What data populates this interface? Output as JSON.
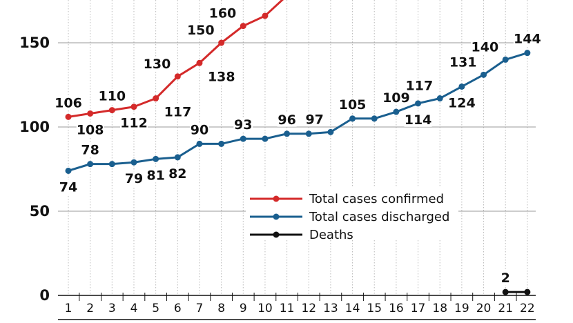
{
  "chart_data": {
    "type": "line",
    "x": [
      1,
      2,
      3,
      4,
      5,
      6,
      7,
      8,
      9,
      10,
      11,
      12,
      13,
      14,
      15,
      16,
      17,
      18,
      19,
      20,
      21,
      22
    ],
    "xtick_labels": [
      "1",
      "2",
      "3",
      "4",
      "5",
      "6",
      "7",
      "8",
      "9",
      "10",
      "11",
      "12",
      "13",
      "14",
      "15",
      "16",
      "17",
      "18",
      "19",
      "20",
      "21",
      "22"
    ],
    "ylim": [
      0,
      175
    ],
    "yticks": [
      0,
      50,
      100,
      150
    ],
    "ytick_labels": [
      "0",
      "50",
      "100",
      "150"
    ],
    "grid": true,
    "legend_position": "center-right",
    "series": [
      {
        "name": "Total cases confirmed",
        "color": "#d42a2a",
        "x": [
          1,
          2,
          3,
          4,
          5,
          6,
          7,
          8,
          9,
          10,
          11
        ],
        "values": [
          106,
          108,
          110,
          112,
          117,
          130,
          138,
          150,
          160,
          166,
          178
        ],
        "labels": [
          {
            "x": 1,
            "text": "106",
            "pos": "above"
          },
          {
            "x": 2,
            "text": "108",
            "pos": "below"
          },
          {
            "x": 3,
            "text": "110",
            "pos": "above"
          },
          {
            "x": 4,
            "text": "112",
            "pos": "below"
          },
          {
            "x": 5,
            "text": "117",
            "pos": "below-right"
          },
          {
            "x": 6,
            "text": "130",
            "pos": "above-left"
          },
          {
            "x": 7,
            "text": "138",
            "pos": "below-right"
          },
          {
            "x": 8,
            "text": "150",
            "pos": "above-left"
          },
          {
            "x": 9,
            "text": "160",
            "pos": "above-left"
          }
        ]
      },
      {
        "name": "Total cases discharged",
        "color": "#1a5f8f",
        "x": [
          1,
          2,
          3,
          4,
          5,
          6,
          7,
          8,
          9,
          10,
          11,
          12,
          13,
          14,
          15,
          16,
          17,
          18,
          19,
          20,
          21,
          22
        ],
        "values": [
          74,
          78,
          78,
          79,
          81,
          82,
          90,
          90,
          93,
          93,
          96,
          96,
          97,
          105,
          105,
          109,
          114,
          117,
          124,
          131,
          140,
          144
        ],
        "labels": [
          {
            "x": 1,
            "text": "74",
            "pos": "below"
          },
          {
            "x": 2,
            "text": "78",
            "pos": "above"
          },
          {
            "x": 4,
            "text": "79",
            "pos": "below"
          },
          {
            "x": 5,
            "text": "81",
            "pos": "below"
          },
          {
            "x": 6,
            "text": "82",
            "pos": "below"
          },
          {
            "x": 7,
            "text": "90",
            "pos": "above"
          },
          {
            "x": 9,
            "text": "93",
            "pos": "above"
          },
          {
            "x": 11,
            "text": "96",
            "pos": "above"
          },
          {
            "x": 13,
            "text": "97",
            "pos": "above-left"
          },
          {
            "x": 14,
            "text": "105",
            "pos": "above"
          },
          {
            "x": 16,
            "text": "109",
            "pos": "above"
          },
          {
            "x": 17,
            "text": "114",
            "pos": "below"
          },
          {
            "x": 18,
            "text": "117",
            "pos": "above-left"
          },
          {
            "x": 19,
            "text": "124",
            "pos": "below"
          },
          {
            "x": 20,
            "text": "131",
            "pos": "above-left"
          },
          {
            "x": 21,
            "text": "140",
            "pos": "above-left"
          },
          {
            "x": 22,
            "text": "144",
            "pos": "above"
          }
        ]
      },
      {
        "name": "Deaths",
        "color": "#111111",
        "x": [
          21,
          22
        ],
        "values": [
          2,
          2
        ],
        "labels": [
          {
            "x": 21,
            "text": "2",
            "pos": "above"
          }
        ]
      }
    ]
  }
}
